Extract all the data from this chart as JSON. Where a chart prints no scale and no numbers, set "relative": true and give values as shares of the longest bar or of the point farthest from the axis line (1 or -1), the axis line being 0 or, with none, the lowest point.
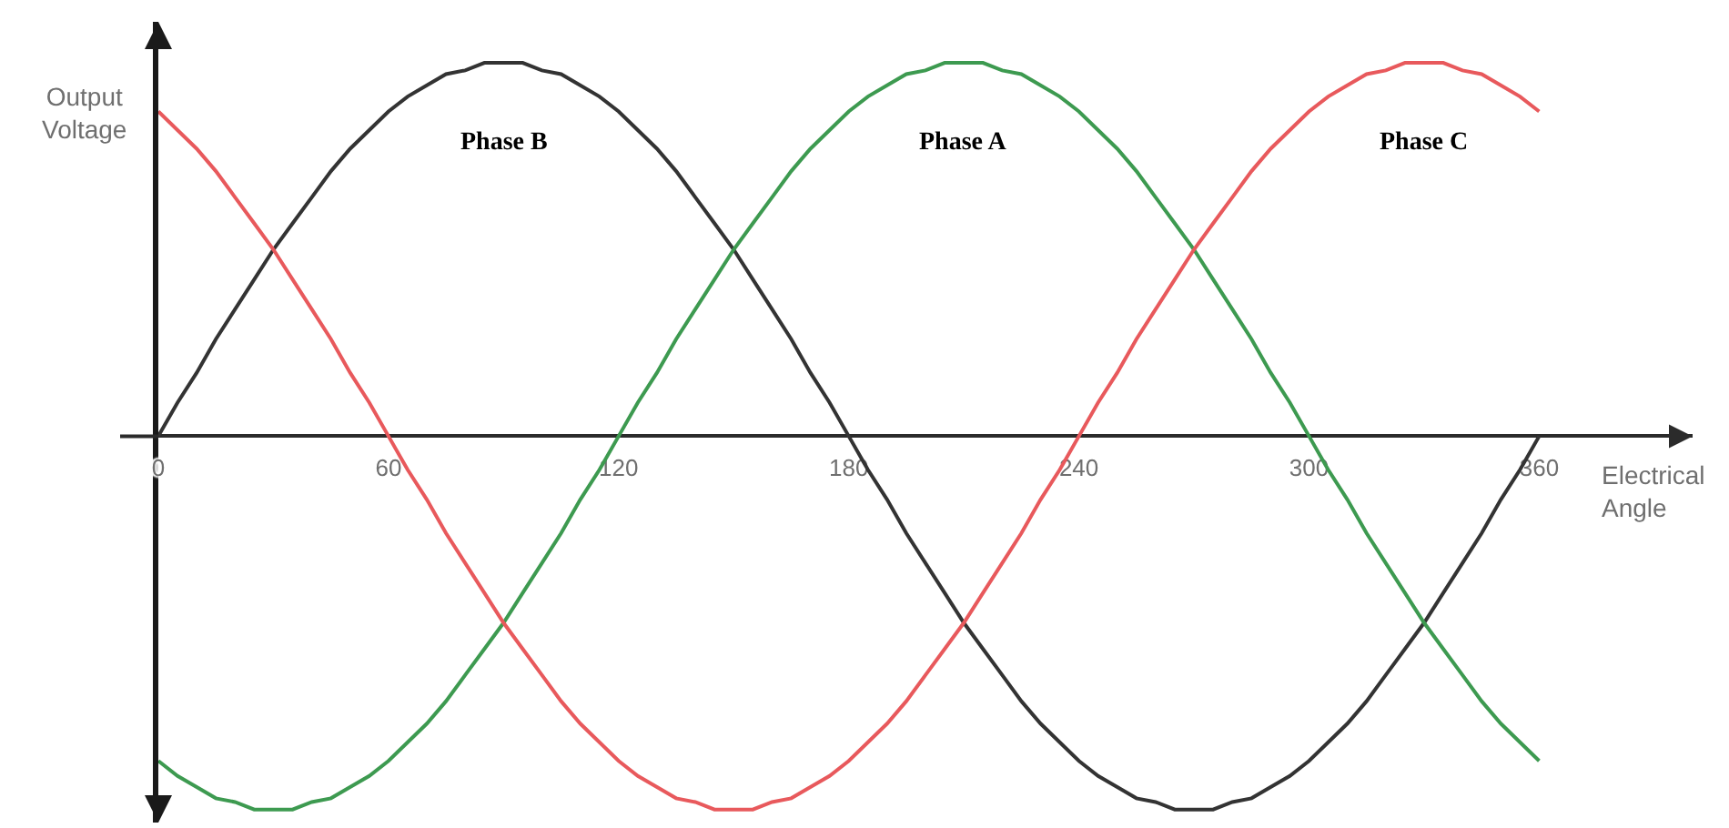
{
  "chart_data": {
    "type": "line",
    "relative": true,
    "xlabel": "Electrical Angle",
    "ylabel": "Output Voltage",
    "xlim": [
      0,
      400
    ],
    "xticks": [
      0,
      60,
      120,
      180,
      240,
      300,
      360
    ],
    "grid": false,
    "legend": false,
    "tick_labels": "x",
    "x": [
      0,
      5,
      10,
      15,
      20,
      25,
      30,
      35,
      40,
      45,
      50,
      55,
      60,
      65,
      70,
      75,
      80,
      85,
      90,
      95,
      100,
      105,
      110,
      115,
      120,
      125,
      130,
      135,
      140,
      145,
      150,
      155,
      160,
      165,
      170,
      175,
      180,
      185,
      190,
      195,
      200,
      205,
      210,
      215,
      220,
      225,
      230,
      235,
      240,
      245,
      250,
      255,
      260,
      265,
      270,
      275,
      280,
      285,
      290,
      295,
      300,
      305,
      310,
      315,
      320,
      325,
      330,
      335,
      340,
      345,
      350,
      355,
      360
    ],
    "series": [
      {
        "name": "Phase B",
        "color": "#333333",
        "values": [
          0,
          0.09,
          0.17,
          0.26,
          0.34,
          0.42,
          0.5,
          0.57,
          0.64,
          0.71,
          0.77,
          0.82,
          0.87,
          0.91,
          0.94,
          0.97,
          0.98,
          1,
          1,
          1,
          0.98,
          0.97,
          0.94,
          0.91,
          0.87,
          0.82,
          0.77,
          0.71,
          0.64,
          0.57,
          0.5,
          0.42,
          0.34,
          0.26,
          0.17,
          0.09,
          0,
          -0.09,
          -0.17,
          -0.26,
          -0.34,
          -0.42,
          -0.5,
          -0.57,
          -0.64,
          -0.71,
          -0.77,
          -0.82,
          -0.87,
          -0.91,
          -0.94,
          -0.97,
          -0.98,
          -1,
          -1,
          -1,
          -0.98,
          -0.97,
          -0.94,
          -0.91,
          -0.87,
          -0.82,
          -0.77,
          -0.71,
          -0.64,
          -0.57,
          -0.5,
          -0.42,
          -0.34,
          -0.26,
          -0.17,
          -0.09,
          0
        ]
      },
      {
        "name": "Phase A",
        "color": "#3d9a50",
        "values": [
          -0.87,
          -0.91,
          -0.94,
          -0.97,
          -0.98,
          -1,
          -1,
          -1,
          -0.98,
          -0.97,
          -0.94,
          -0.91,
          -0.87,
          -0.82,
          -0.77,
          -0.71,
          -0.64,
          -0.57,
          -0.5,
          -0.42,
          -0.34,
          -0.26,
          -0.17,
          -0.09,
          0,
          0.09,
          0.17,
          0.26,
          0.34,
          0.42,
          0.5,
          0.57,
          0.64,
          0.71,
          0.77,
          0.82,
          0.87,
          0.91,
          0.94,
          0.97,
          0.98,
          1,
          1,
          1,
          0.98,
          0.97,
          0.94,
          0.91,
          0.87,
          0.82,
          0.77,
          0.71,
          0.64,
          0.57,
          0.5,
          0.42,
          0.34,
          0.26,
          0.17,
          0.09,
          0,
          -0.09,
          -0.17,
          -0.26,
          -0.34,
          -0.42,
          -0.5,
          -0.57,
          -0.64,
          -0.71,
          -0.77,
          -0.82,
          -0.87
        ]
      },
      {
        "name": "Phase C",
        "color": "#e8595c",
        "values": [
          0.87,
          0.82,
          0.77,
          0.71,
          0.64,
          0.57,
          0.5,
          0.42,
          0.34,
          0.26,
          0.17,
          0.09,
          0,
          -0.09,
          -0.17,
          -0.26,
          -0.34,
          -0.42,
          -0.5,
          -0.57,
          -0.64,
          -0.71,
          -0.77,
          -0.82,
          -0.87,
          -0.91,
          -0.94,
          -0.97,
          -0.98,
          -1,
          -1,
          -1,
          -0.98,
          -0.97,
          -0.94,
          -0.91,
          -0.87,
          -0.82,
          -0.77,
          -0.71,
          -0.64,
          -0.57,
          -0.5,
          -0.42,
          -0.34,
          -0.26,
          -0.17,
          -0.09,
          0,
          0.09,
          0.17,
          0.26,
          0.34,
          0.42,
          0.5,
          0.57,
          0.64,
          0.71,
          0.77,
          0.82,
          0.87,
          0.91,
          0.94,
          0.97,
          0.98,
          1,
          1,
          1,
          0.98,
          0.97,
          0.94,
          0.91,
          0.87
        ]
      }
    ]
  }
}
